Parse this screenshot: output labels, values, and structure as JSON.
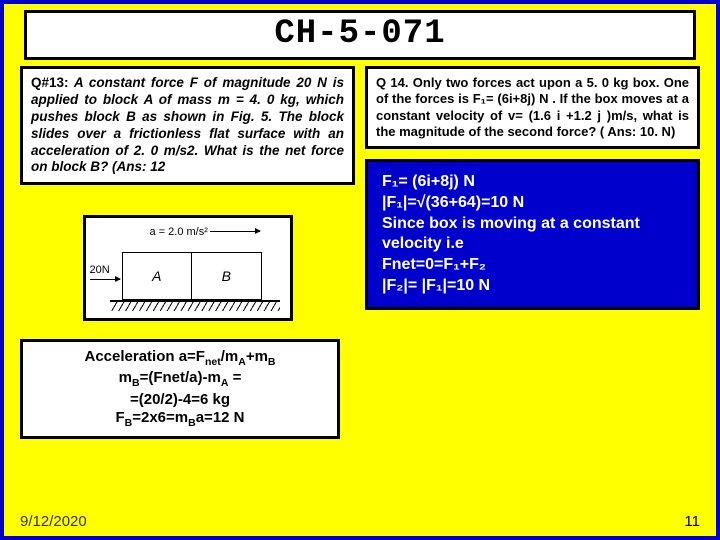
{
  "title": "CH-5-071",
  "q13": {
    "prefix": "Q#13:",
    "body": " A constant force F of magnitude 20 N is applied to block A of mass m = 4. 0 kg, which pushes block B as shown in Fig. 5. The block slides over a frictionless flat surface with an acceleration of 2. 0 m/s2. What is the net force on block B? (Ans: 12"
  },
  "q14": {
    "prefix": "Q 14.",
    "body": "  Only  two  forces act upon a 5. 0 kg box.  One of the forces is F₁= (6i+8j) N  . If the box moves at a constant velocity of v= (1.6 i +1.2 j )m/s, what is the magnitude of the second force? ( Ans: 10. N)"
  },
  "figure": {
    "accel": "a = 2.0 m/s²",
    "force": "20N",
    "labelA": "A",
    "labelB": "B"
  },
  "sol13": {
    "l1a": "Acceleration a=F",
    "l1b": "net",
    "l1c": "/m",
    "l1d": "A",
    "l1e": "+m",
    "l1f": "B",
    "l2a": "m",
    "l2b": "B",
    "l2c": "=(Fnet/a)-m",
    "l2d": "A",
    "l2e": " =",
    "l3": "=(20/2)-4=6 kg",
    "l4a": "F",
    "l4b": "B",
    "l4c": "=2x6=m",
    "l4d": "B",
    "l4e": "a=12 N"
  },
  "sol14": {
    "l1": "F₁= (6i+8j) N",
    "l2": "|F₁|=√(36+64)=10 N",
    "l3": "Since box is moving at a constant velocity i.e",
    "l4": "Fnet=0=F₁+F₂",
    "l5": "|F₂|= |F₁|=10 N"
  },
  "footer": {
    "date": "9/12/2020",
    "page": "11"
  },
  "colors": {
    "bg": "#ffff00",
    "border": "#0000cc",
    "sol_bg": "#0000cc"
  }
}
